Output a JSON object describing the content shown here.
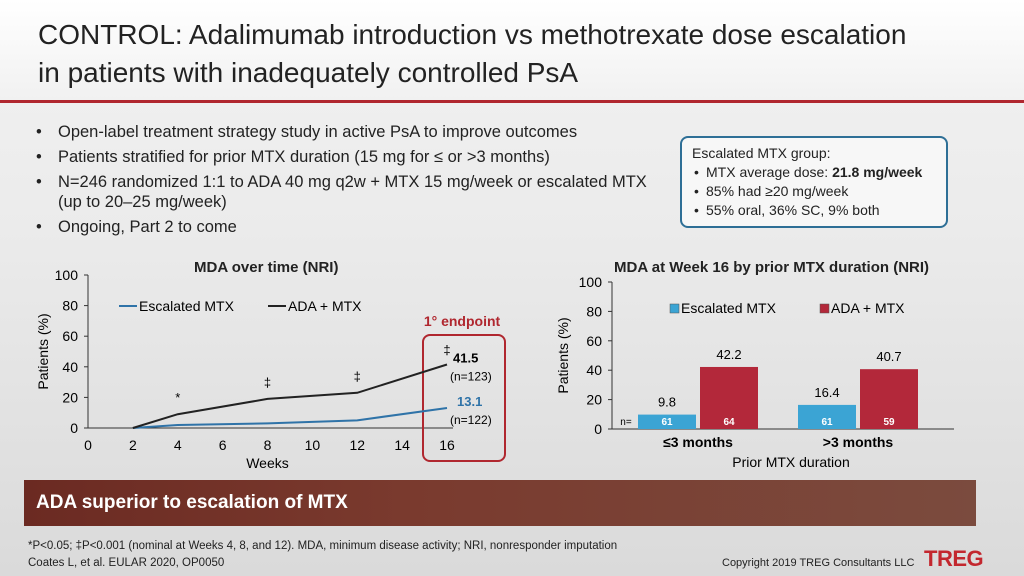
{
  "title": {
    "line1": "CONTROL: Adalimumab introduction vs methotrexate dose escalation",
    "line2": "in patients with inadequately controlled PsA"
  },
  "bullets": [
    "Open-label treatment strategy study in active PsA to improve outcomes",
    "Patients stratified for prior MTX duration (15 mg for ≤ or >3 months)",
    "N=246 randomized 1:1 to ADA 40 mg q2w + MTX 15 mg/week or escalated MTX (up to 20–25 mg/week)",
    "Ongoing, Part 2 to come"
  ],
  "callout": {
    "heading": "Escalated MTX group:",
    "item1_prefix": "MTX average dose: ",
    "item1_value": "21.8 mg/week",
    "item2": "85% had ≥20 mg/week",
    "item3": "55% oral, 36% SC, 9% both"
  },
  "chart1_text": {
    "endpoint_label": "1° endpoint",
    "ada_value": "41.5",
    "ada_n": "(n=123)",
    "mtx_value": "13.1",
    "mtx_n": "(n=122)",
    "dagger": "‡",
    "star": "*"
  },
  "chart2_text": {
    "n_prefix": "n="
  },
  "colors": {
    "accent_red": "#b0272f",
    "series_blue": "#2f73a8",
    "series_black": "#222222",
    "bar_blue": "#3ba4d4",
    "bar_red": "#b3283a",
    "banner": "#6b2a22"
  },
  "chart_data": [
    {
      "type": "line",
      "title": "MDA over time (NRI)",
      "xlabel": "Weeks",
      "ylabel": "Patients (%)",
      "xlim": [
        0,
        16
      ],
      "ylim": [
        0,
        100
      ],
      "x_ticks": [
        0,
        2,
        4,
        6,
        8,
        10,
        12,
        14,
        16
      ],
      "y_ticks": [
        0,
        20,
        40,
        60,
        80,
        100
      ],
      "legend_position": "top-left",
      "series": [
        {
          "name": "Escalated MTX",
          "x": [
            2,
            4,
            8,
            12,
            16
          ],
          "values": [
            0,
            2,
            3,
            5,
            13.1
          ]
        },
        {
          "name": "ADA + MTX",
          "x": [
            2,
            4,
            8,
            12,
            16
          ],
          "values": [
            0,
            9,
            19,
            23,
            41.5
          ]
        }
      ],
      "annotations": [
        {
          "x": 4,
          "text": "*"
        },
        {
          "x": 8,
          "text": "‡"
        },
        {
          "x": 12,
          "text": "‡"
        },
        {
          "x": 16,
          "text": "‡"
        }
      ]
    },
    {
      "type": "bar",
      "title": "MDA at Week 16 by prior MTX duration (NRI)",
      "xlabel": "Prior MTX duration",
      "ylabel": "Patients (%)",
      "ylim": [
        0,
        100
      ],
      "y_ticks": [
        0,
        20,
        40,
        60,
        80,
        100
      ],
      "categories": [
        "≤3 months",
        ">3 months"
      ],
      "legend_position": "top",
      "series": [
        {
          "name": "Escalated MTX",
          "values": [
            9.8,
            16.4
          ],
          "n": [
            61,
            61
          ]
        },
        {
          "name": "ADA + MTX",
          "values": [
            42.2,
            40.7
          ],
          "n": [
            64,
            59
          ]
        }
      ]
    }
  ],
  "banner": "ADA superior to escalation of MTX",
  "footnote1": "*P<0.05; ‡P<0.001 (nominal at Weeks 4, 8, and 12). MDA, minimum disease activity; NRI, nonresponder imputation",
  "footnote2": "Coates L, et al. EULAR 2020, OP0050",
  "copyright": "Copyright 2019 TREG Consultants LLC",
  "logo": "TREG"
}
